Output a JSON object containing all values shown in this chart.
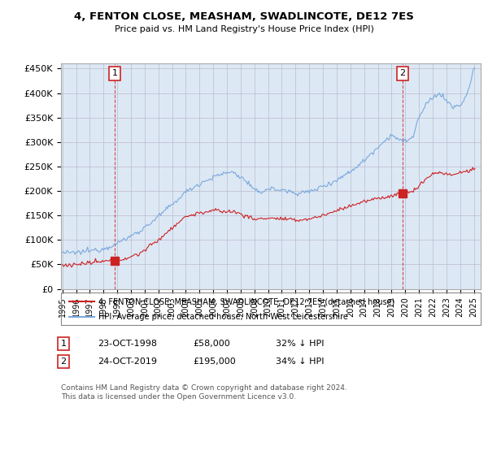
{
  "title": "4, FENTON CLOSE, MEASHAM, SWADLINCOTE, DE12 7ES",
  "subtitle": "Price paid vs. HM Land Registry's House Price Index (HPI)",
  "legend_line1": "4, FENTON CLOSE, MEASHAM, SWADLINCOTE, DE12 7ES (detached house)",
  "legend_line2": "HPI: Average price, detached house, North West Leicestershire",
  "footer": "Contains HM Land Registry data © Crown copyright and database right 2024.\nThis data is licensed under the Open Government Licence v3.0.",
  "point1_label": "1",
  "point1_date": "23-OCT-1998",
  "point1_price": "£58,000",
  "point1_hpi": "32% ↓ HPI",
  "point1_x": 1998.81,
  "point1_y": 58000,
  "point2_label": "2",
  "point2_date": "24-OCT-2019",
  "point2_price": "£195,000",
  "point2_hpi": "34% ↓ HPI",
  "point2_x": 2019.81,
  "point2_y": 195000,
  "hpi_color": "#7aaadd",
  "price_color": "#cc2222",
  "vline_color": "#cc2222",
  "bg_color": "#dde8f5",
  "ylim": [
    0,
    460000
  ],
  "yticks": [
    0,
    50000,
    100000,
    150000,
    200000,
    250000,
    300000,
    350000,
    400000,
    450000
  ],
  "xlim": [
    1994.9,
    2025.5
  ],
  "xticks": [
    1995,
    1996,
    1997,
    1998,
    1999,
    2000,
    2001,
    2002,
    2003,
    2004,
    2005,
    2006,
    2007,
    2008,
    2009,
    2010,
    2011,
    2012,
    2013,
    2014,
    2015,
    2016,
    2017,
    2018,
    2019,
    2020,
    2021,
    2022,
    2023,
    2024,
    2025
  ],
  "hpi_anchors_x": [
    1995.0,
    1995.5,
    1996.0,
    1997.0,
    1998.0,
    1999.0,
    2000.0,
    2001.0,
    2002.0,
    2003.0,
    2004.0,
    2005.0,
    2006.0,
    2007.0,
    2007.5,
    2008.5,
    2009.0,
    2009.5,
    2010.0,
    2011.0,
    2012.0,
    2013.0,
    2014.0,
    2015.0,
    2016.0,
    2017.0,
    2018.0,
    2019.0,
    2019.81,
    2020.5,
    2021.0,
    2021.5,
    2022.0,
    2022.5,
    2023.0,
    2023.5,
    2024.0,
    2024.5,
    2025.0
  ],
  "hpi_anchors_y": [
    75000,
    73000,
    74000,
    78000,
    82000,
    93000,
    108000,
    125000,
    148000,
    172000,
    198000,
    215000,
    228000,
    238000,
    238000,
    218000,
    200000,
    198000,
    205000,
    202000,
    196000,
    198000,
    210000,
    222000,
    240000,
    262000,
    290000,
    315000,
    300000,
    308000,
    350000,
    375000,
    390000,
    400000,
    385000,
    370000,
    375000,
    395000,
    450000
  ],
  "price_anchors_x": [
    1995.0,
    1996.0,
    1997.0,
    1998.0,
    1998.81,
    1999.5,
    2000.5,
    2001.0,
    2002.0,
    2003.0,
    2004.0,
    2005.0,
    2006.0,
    2007.0,
    2007.5,
    2008.5,
    2009.0,
    2010.0,
    2011.0,
    2012.0,
    2013.0,
    2014.0,
    2015.0,
    2016.0,
    2017.0,
    2018.0,
    2019.0,
    2019.81,
    2020.5,
    2021.0,
    2021.5,
    2022.0,
    2022.5,
    2023.0,
    2023.5,
    2024.0,
    2024.5,
    2025.0
  ],
  "price_anchors_y": [
    48000,
    50000,
    53000,
    56000,
    58000,
    62000,
    70000,
    80000,
    100000,
    125000,
    148000,
    155000,
    160000,
    158000,
    158000,
    148000,
    142000,
    145000,
    143000,
    140000,
    143000,
    150000,
    160000,
    170000,
    178000,
    185000,
    190000,
    195000,
    198000,
    210000,
    225000,
    235000,
    238000,
    235000,
    232000,
    238000,
    240000,
    245000
  ]
}
